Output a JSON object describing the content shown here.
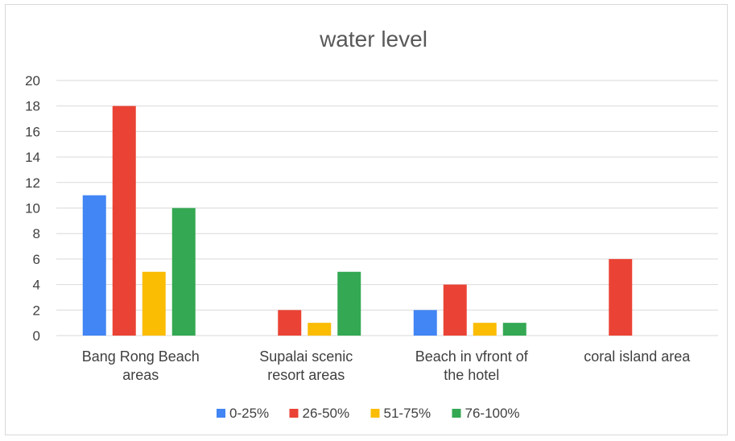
{
  "chart_data": {
    "type": "bar",
    "title": "water level",
    "categories": [
      [
        "Bang Rong Beach",
        "areas"
      ],
      [
        "Supalai scenic",
        "resort areas"
      ],
      [
        "Beach in vfront of",
        "the hotel"
      ],
      [
        "coral island area"
      ]
    ],
    "series": [
      {
        "name": "0-25%",
        "color": "#4285f4",
        "values": [
          11,
          0,
          2,
          0
        ]
      },
      {
        "name": "26-50%",
        "color": "#ea4335",
        "values": [
          18,
          2,
          4,
          6
        ]
      },
      {
        "name": "51-75%",
        "color": "#fbbc04",
        "values": [
          5,
          1,
          1,
          0
        ]
      },
      {
        "name": "76-100%",
        "color": "#34a853",
        "values": [
          10,
          5,
          1,
          0
        ]
      }
    ],
    "ylim": [
      0,
      20
    ],
    "yticks": [
      0,
      2,
      4,
      6,
      8,
      10,
      12,
      14,
      16,
      18,
      20
    ],
    "grid": true,
    "legend_position": "bottom"
  }
}
